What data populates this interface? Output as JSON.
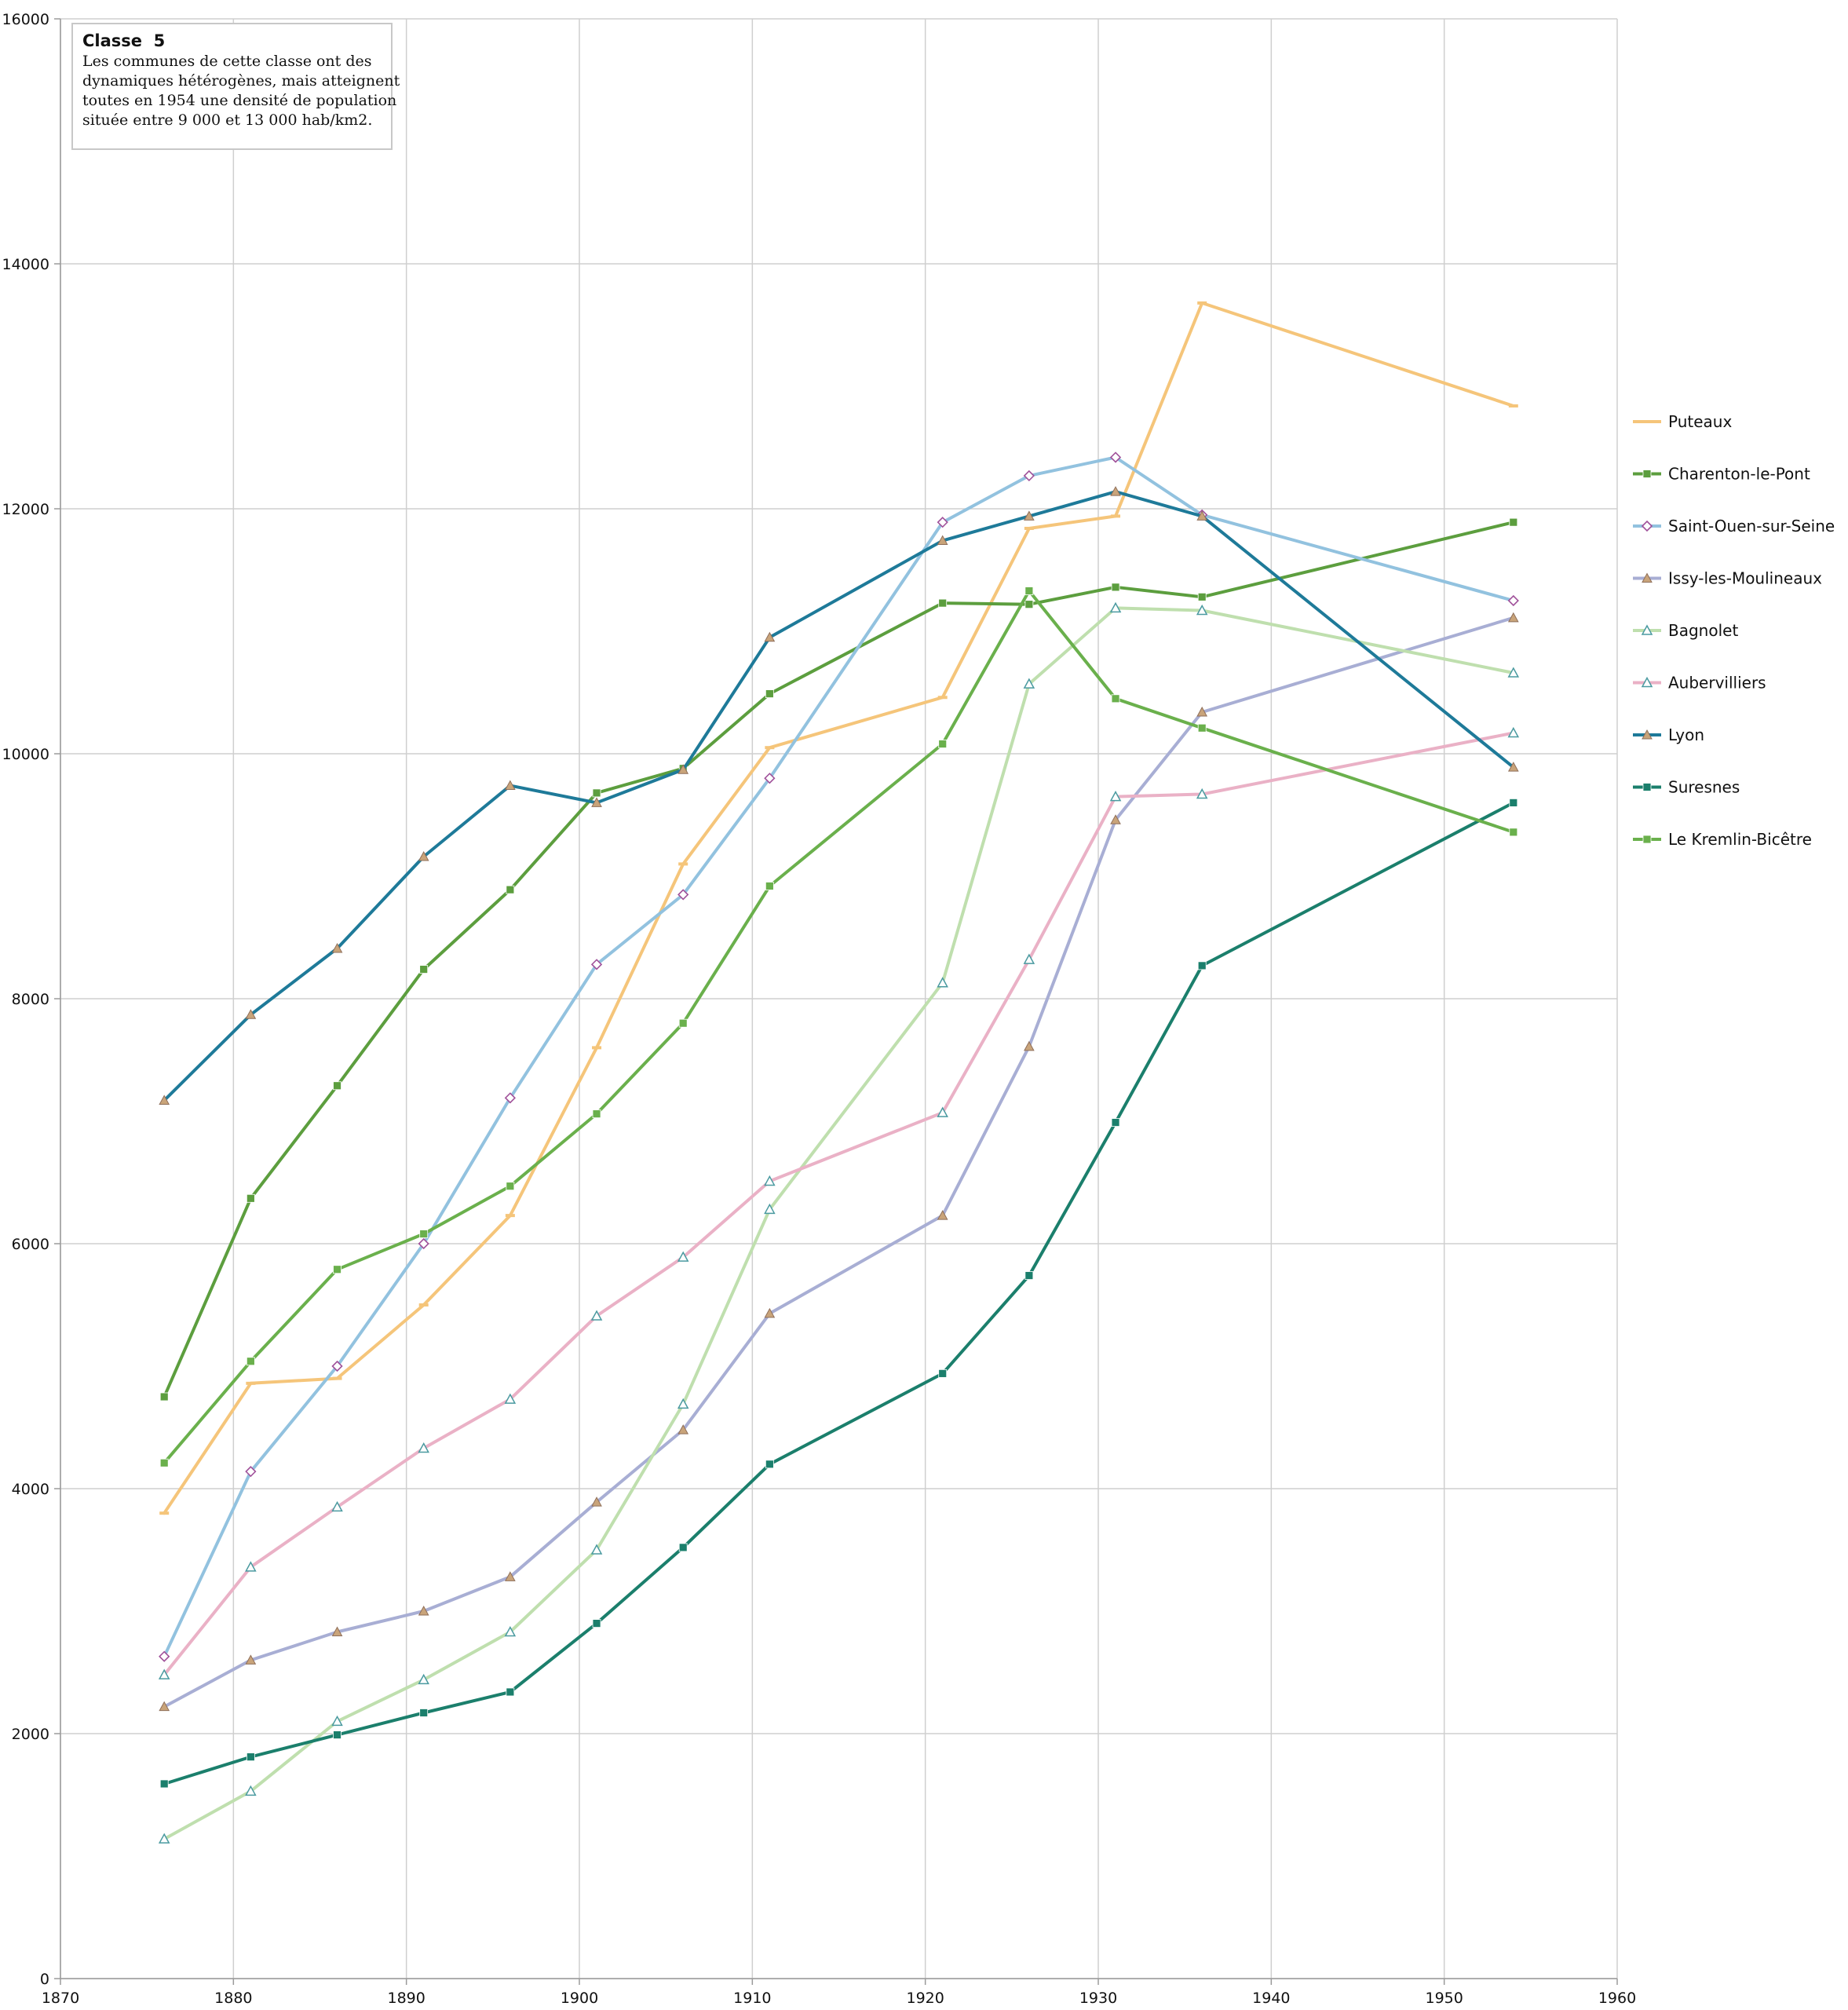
{
  "note": {
    "title": "Classe  5",
    "lines": [
      "Les communes de cette classe ont des",
      "dynamiques hétérogènes, mais atteignent",
      "toutes en 1954 une densité de population",
      "située entre 9 000 et 13 000 hab/km2."
    ]
  },
  "chart_data": {
    "type": "line",
    "title": "",
    "xlabel": "",
    "ylabel": "",
    "xlim": [
      1870,
      1960
    ],
    "ylim": [
      0,
      16000
    ],
    "x_ticks": [
      1870,
      1880,
      1890,
      1900,
      1910,
      1920,
      1930,
      1940,
      1950,
      1960
    ],
    "y_ticks": [
      0,
      2000,
      4000,
      6000,
      8000,
      10000,
      12000,
      14000,
      16000
    ],
    "grid": true,
    "legend_position": "right",
    "x": [
      1876,
      1881,
      1886,
      1891,
      1896,
      1901,
      1906,
      1911,
      1921,
      1926,
      1931,
      1936,
      1954
    ],
    "series": [
      {
        "name": "Puteaux",
        "color": "#f5c57a",
        "marker": "dash",
        "values": [
          3800,
          4860,
          4900,
          5500,
          6230,
          7600,
          9100,
          10050,
          10460,
          11840,
          11940,
          13680,
          12840
        ]
      },
      {
        "name": "Charenton-le-Pont",
        "color": "#5c9e3e",
        "marker": "square",
        "values": [
          4750,
          6370,
          7290,
          8240,
          8890,
          9680,
          9880,
          10490,
          11230,
          11220,
          11360,
          11280,
          11890
        ]
      },
      {
        "name": "Saint-Ouen-sur-Seine",
        "color": "#92c2df",
        "marker": "diamond",
        "values": [
          2630,
          4140,
          5000,
          6000,
          7190,
          8280,
          8850,
          9800,
          11890,
          12270,
          12420,
          11950,
          11250
        ]
      },
      {
        "name": "Issy-les-Moulineaux",
        "color": "#a8aed4",
        "marker": "triangle",
        "values": [
          2220,
          2600,
          2830,
          3000,
          3280,
          3890,
          4480,
          5430,
          6230,
          7610,
          9460,
          10340,
          11110
        ]
      },
      {
        "name": "Bagnolet",
        "color": "#bfdfae",
        "marker": "triangle-open",
        "values": [
          1140,
          1530,
          2100,
          2440,
          2830,
          3500,
          4690,
          6280,
          8130,
          10570,
          11190,
          11170,
          10660
        ]
      },
      {
        "name": "Aubervilliers",
        "color": "#eab1c6",
        "marker": "triangle-open",
        "values": [
          2480,
          3360,
          3850,
          4330,
          4730,
          5410,
          5890,
          6510,
          7070,
          8320,
          9650,
          9670,
          10170
        ]
      },
      {
        "name": "Lyon",
        "color": "#1e7a99",
        "marker": "triangle",
        "values": [
          7170,
          7870,
          8410,
          9160,
          9740,
          9600,
          9870,
          10950,
          11740,
          11940,
          12140,
          11940,
          9890
        ]
      },
      {
        "name": "Suresnes",
        "color": "#1b7f6c",
        "marker": "square",
        "values": [
          1590,
          1810,
          1990,
          2170,
          2340,
          2900,
          3520,
          4200,
          4940,
          5740,
          6990,
          8270,
          9600
        ]
      },
      {
        "name": "Le Kremlin-Bicêtre",
        "color": "#6ab04c",
        "marker": "square",
        "values": [
          4210,
          5040,
          5790,
          6080,
          6470,
          7060,
          7800,
          8920,
          10080,
          11330,
          10450,
          10210,
          9360
        ]
      }
    ]
  }
}
